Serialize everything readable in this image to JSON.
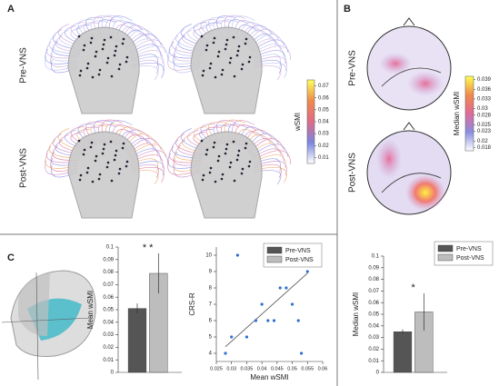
{
  "labels": {
    "panel_a": "A",
    "panel_b": "B",
    "panel_c": "C",
    "a_rows": [
      "Pre-VNS",
      "Post-VNS"
    ],
    "b_rows": [
      "Pre-VNS",
      "Post-VNS"
    ]
  },
  "chart_data": [
    {
      "type": "colorbar",
      "label": "wSMI",
      "lim": [
        0.005,
        0.075
      ],
      "ticks": [
        0.01,
        0.02,
        0.03,
        0.04,
        0.05,
        0.06,
        0.07
      ],
      "colors": [
        "#ffffff",
        "#7a86e0",
        "#e06a8a",
        "#f08a4a",
        "#ffff60"
      ]
    },
    {
      "type": "colorbar",
      "label": "Median wSMI",
      "lim": [
        0.017,
        0.04
      ],
      "ticks": [
        0.018,
        0.02,
        0.023,
        0.025,
        0.028,
        0.03,
        0.033,
        0.036,
        0.039
      ],
      "colors": [
        "#ffffff",
        "#8a8ee0",
        "#e06a9a",
        "#f08a4a",
        "#ffff50"
      ]
    },
    {
      "type": "bar",
      "y_label": "Mean wSMI",
      "ylim": [
        0,
        0.1
      ],
      "yticks": [
        0,
        0.01,
        0.02,
        0.03,
        0.04,
        0.05,
        0.06,
        0.07,
        0.08,
        0.09,
        0.1
      ],
      "annotation": "* *",
      "series": [
        {
          "name": "Pre-VNS",
          "color": "#555555",
          "values": [
            0.051
          ],
          "errors": [
            0.004
          ]
        },
        {
          "name": "Post-VNS",
          "color": "#bdbdbd",
          "values": [
            0.079
          ],
          "errors": [
            0.016
          ]
        }
      ]
    },
    {
      "type": "scatter",
      "x_label": "Mean wSMI",
      "y_label": "CRS-R",
      "color": "#2f6fd0",
      "xlim": [
        0.025,
        0.06
      ],
      "ylim": [
        3.5,
        10.5
      ],
      "xticks": [
        0.025,
        0.03,
        0.035,
        0.04,
        0.045,
        0.05,
        0.055,
        0.06
      ],
      "yticks": [
        4,
        5,
        6,
        7,
        8,
        9,
        10
      ],
      "x": [
        0.028,
        0.03,
        0.032,
        0.035,
        0.038,
        0.04,
        0.042,
        0.044,
        0.046,
        0.048,
        0.05,
        0.052,
        0.053,
        0.055
      ],
      "y": [
        4,
        5,
        10,
        5,
        6,
        7,
        6,
        6,
        8,
        8,
        7,
        6,
        4,
        9
      ],
      "trend": {
        "x": [
          0.028,
          0.055
        ],
        "y": [
          4.4,
          8.9
        ]
      }
    },
    {
      "type": "bar",
      "y_label": "Median wSMI",
      "ylim": [
        0,
        0.1
      ],
      "yticks": [
        0,
        0.01,
        0.02,
        0.03,
        0.04,
        0.05,
        0.06,
        0.07,
        0.08,
        0.09,
        0.1
      ],
      "annotation": "*",
      "series": [
        {
          "name": "Pre-VNS",
          "color": "#555555",
          "values": [
            0.035
          ],
          "errors": [
            0.002
          ]
        },
        {
          "name": "Post-VNS",
          "color": "#bdbdbd",
          "values": [
            0.052
          ],
          "errors": [
            0.016
          ]
        }
      ]
    }
  ]
}
